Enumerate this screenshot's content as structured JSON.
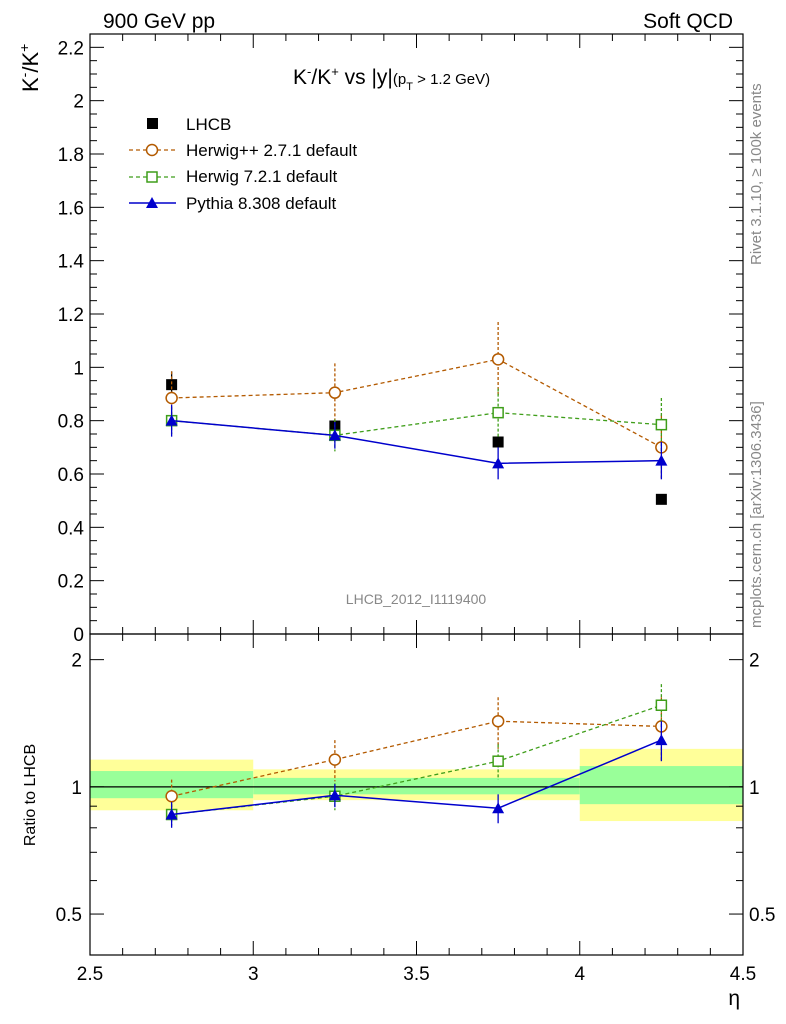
{
  "header": {
    "left": "900 GeV pp",
    "right": "Soft QCD"
  },
  "side_labels": {
    "rivet": "Rivet 3.1.10, ≥ 100k events",
    "mcplots": "mcplots.cern.ch [arXiv:1306.3436]"
  },
  "analysis_id": "LHCB_2012_I1119400",
  "chart_data": [
    {
      "type": "line",
      "panel": "main",
      "title": "K⁻/K⁺ vs |y|(p_T > 1.2 GeV)",
      "title_parts": {
        "main": "K",
        "minus": "-",
        "slash": "/K",
        "plus": "+",
        "vs": " vs |y|",
        "sub_open": "(p",
        "sub_T": "T",
        "sub_rest": " > 1.2 GeV)"
      },
      "ylabel_parts": {
        "k1": "K",
        "minus": "-",
        "slash": "/K",
        "plus": "+"
      },
      "xlabel": "η",
      "xlim": [
        2.5,
        4.5
      ],
      "ylim": [
        0,
        2.25
      ],
      "x_ticks": [
        "2.5",
        "3",
        "3.5",
        "4",
        "4.5"
      ],
      "y_ticks": [
        "0",
        "0.2",
        "0.4",
        "0.6",
        "0.8",
        "1",
        "1.2",
        "1.4",
        "1.6",
        "1.8",
        "2",
        "2.2"
      ],
      "legend_position": "top-left",
      "series": [
        {
          "name": "LHCB",
          "color": "#000000",
          "marker": "filled-square",
          "line": "none",
          "x": [
            2.75,
            3.25,
            3.75,
            4.25
          ],
          "y": [
            0.935,
            0.78,
            0.72,
            0.505
          ],
          "err": [
            0.05,
            0.02,
            0.02,
            0.01
          ]
        },
        {
          "name": "Herwig++ 2.7.1 default",
          "color": "#b35a00",
          "marker": "open-circle",
          "line": "dashed",
          "x": [
            2.75,
            3.25,
            3.75,
            4.25
          ],
          "y": [
            0.885,
            0.905,
            1.03,
            0.7
          ],
          "err": [
            0.1,
            0.11,
            0.14,
            0.12
          ]
        },
        {
          "name": "Herwig 7.2.1 default",
          "color": "#3f9e1a",
          "marker": "open-square",
          "line": "dashed",
          "x": [
            2.75,
            3.25,
            3.75,
            4.25
          ],
          "y": [
            0.8,
            0.745,
            0.83,
            0.785
          ],
          "err": [
            0.05,
            0.06,
            0.09,
            0.1
          ]
        },
        {
          "name": "Pythia 8.308 default",
          "color": "#0000cc",
          "marker": "filled-triangle",
          "line": "solid",
          "x": [
            2.75,
            3.25,
            3.75,
            4.25
          ],
          "y": [
            0.8,
            0.745,
            0.64,
            0.65
          ],
          "err": [
            0.06,
            0.05,
            0.06,
            0.07
          ]
        }
      ]
    },
    {
      "type": "line",
      "panel": "ratio",
      "ylabel": "Ratio to LHCB",
      "xlabel": "η",
      "xlim": [
        2.5,
        4.5
      ],
      "ylim": [
        0.4,
        2.3
      ],
      "log_scale": true,
      "y_ticks": [
        "0.5",
        "1",
        "2"
      ],
      "bins": [
        [
          2.5,
          3.0
        ],
        [
          3.0,
          3.5
        ],
        [
          3.5,
          4.0
        ],
        [
          4.0,
          4.5
        ]
      ],
      "bands": {
        "green": [
          [
            0.94,
            1.09
          ],
          [
            0.96,
            1.05
          ],
          [
            0.96,
            1.05
          ],
          [
            0.91,
            1.12
          ]
        ],
        "yellow": [
          [
            0.88,
            1.16
          ],
          [
            0.93,
            1.1
          ],
          [
            0.93,
            1.1
          ],
          [
            0.83,
            1.23
          ]
        ]
      },
      "series": [
        {
          "name": "Herwig++ 2.7.1 default",
          "x": [
            2.75,
            3.25,
            3.75,
            4.25
          ],
          "y": [
            0.95,
            1.16,
            1.43,
            1.39
          ],
          "err": [
            0.09,
            0.13,
            0.2,
            0.24
          ]
        },
        {
          "name": "Herwig 7.2.1 default",
          "x": [
            2.75,
            3.25,
            3.75,
            4.25
          ],
          "y": [
            0.86,
            0.95,
            1.15,
            1.56
          ],
          "err": [
            0.05,
            0.07,
            0.11,
            0.19
          ]
        },
        {
          "name": "Pythia 8.308 default",
          "x": [
            2.75,
            3.25,
            3.75,
            4.25
          ],
          "y": [
            0.86,
            0.955,
            0.89,
            1.29
          ],
          "err": [
            0.06,
            0.06,
            0.07,
            0.14
          ]
        }
      ]
    }
  ]
}
